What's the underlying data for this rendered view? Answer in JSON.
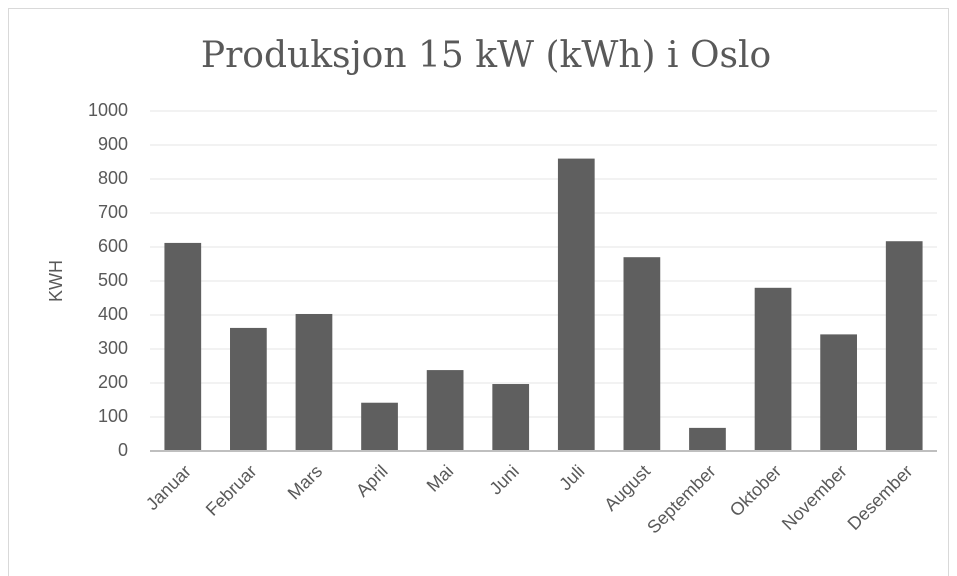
{
  "chart_data": {
    "type": "bar",
    "title": "Produksjon 15 kW (kWh) i Oslo",
    "y_label": "KWH",
    "categories": [
      "Januar",
      "Februar",
      "Mars",
      "April",
      "Mai",
      "Juni",
      "Juli",
      "August",
      "September",
      "Oktober",
      "November",
      "Desember"
    ],
    "values": [
      612,
      362,
      403,
      142,
      238,
      197,
      860,
      570,
      68,
      480,
      343,
      617
    ],
    "color": "#5f5f5f",
    "ylim": [
      0,
      1000
    ],
    "yticks": [
      0,
      100,
      200,
      300,
      400,
      500,
      600,
      700,
      800,
      900,
      1000
    ],
    "grid": true
  }
}
